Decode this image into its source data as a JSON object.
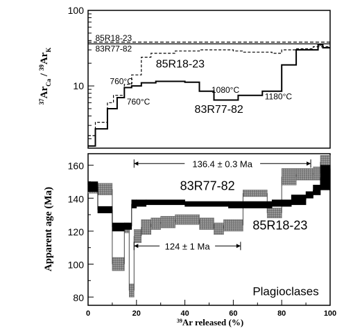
{
  "chart_data": [
    {
      "type": "line",
      "panel": "top",
      "yscale": "log",
      "xlim": [
        0,
        100
      ],
      "ylim": [
        1.5,
        100
      ],
      "yticks": [
        10,
        100
      ],
      "ylabel_parts": [
        "37",
        "Ar",
        "Ca",
        " / ",
        "39",
        "Ar",
        "K"
      ],
      "reference_lines": [
        {
          "name": "85R18-23",
          "value": 38,
          "style": "dashed"
        },
        {
          "name": "83R77-82",
          "value": 36,
          "style": "solid"
        }
      ],
      "series": [
        {
          "name": "85R18-23",
          "style": "dashed",
          "steps": [
            [
              0,
              2.2
            ],
            [
              3,
              3.3
            ],
            [
              8,
              6
            ],
            [
              10.5,
              7.5
            ],
            [
              15,
              10.5
            ],
            [
              18,
              14
            ],
            [
              22,
              24
            ],
            [
              26,
              27
            ],
            [
              33,
              27
            ],
            [
              36,
              29
            ],
            [
              46,
              30
            ],
            [
              60,
              29
            ],
            [
              64,
              28
            ],
            [
              76,
              27
            ],
            [
              80,
              30
            ],
            [
              86,
              31
            ],
            [
              93,
              33
            ],
            [
              96,
              33
            ],
            [
              100,
              33
            ]
          ]
        },
        {
          "name": "83R77-82",
          "style": "solid",
          "steps": [
            [
              0,
              1.6
            ],
            [
              3,
              2.7
            ],
            [
              8,
              5
            ],
            [
              12,
              7
            ],
            [
              15,
              9.5
            ],
            [
              18,
              10
            ],
            [
              22,
              11
            ],
            [
              28,
              11.5
            ],
            [
              40,
              11.2
            ],
            [
              46,
              8.5
            ],
            [
              52,
              6.5
            ],
            [
              62,
              7.5
            ],
            [
              72,
              8.5
            ],
            [
              80,
              19
            ],
            [
              86,
              30
            ],
            [
              95,
              35
            ],
            [
              97,
              32
            ],
            [
              100,
              32
            ]
          ]
        }
      ],
      "annotations": [
        {
          "text": "85R18-23",
          "x": 3,
          "y": 43,
          "series": "85R18-23"
        },
        {
          "text": "83R77-82",
          "x": 3,
          "y": 31,
          "series": "83R77-82"
        },
        {
          "text": "85R18-23",
          "x": 28,
          "y": 19,
          "series": "85R18-23"
        },
        {
          "text": "760°C",
          "x": 9,
          "y": 11.5,
          "series": "85R18-23"
        },
        {
          "text": "760°C",
          "x": 16,
          "y": 6.2,
          "series": "83R77-82"
        },
        {
          "text": "1080°C",
          "x": 51,
          "y": 8.8,
          "series": "83R77-82"
        },
        {
          "text": "83R77-82",
          "x": 44,
          "y": 4.8,
          "series": "83R77-82"
        },
        {
          "text": "1180°C",
          "x": 73,
          "y": 7.2,
          "series": "83R77-82"
        }
      ]
    },
    {
      "type": "area",
      "panel": "bottom",
      "xlim": [
        0,
        100
      ],
      "ylim": [
        75,
        167
      ],
      "xticks": [
        0,
        20,
        40,
        60,
        80,
        100
      ],
      "yticks": [
        80,
        100,
        120,
        140,
        160
      ],
      "xlabel_parts": [
        "39",
        "Ar released  (%)"
      ],
      "ylabel": "Apparent  age  (Ma)",
      "series": [
        {
          "name": "83R77-82",
          "style": "black",
          "steps": [
            [
              0,
              144,
              150
            ],
            [
              4,
              131,
              135
            ],
            [
              10,
              120,
              125
            ],
            [
              15,
              121,
              125
            ],
            [
              18,
              134,
              139
            ],
            [
              20,
              135,
              139
            ],
            [
              24,
              136,
              139
            ],
            [
              40,
              135,
              138
            ],
            [
              58,
              134,
              138
            ],
            [
              76,
              135,
              139
            ],
            [
              84,
              136,
              142
            ],
            [
              90,
              140,
              144
            ],
            [
              93,
              142,
              148
            ],
            [
              96,
              145,
              160
            ],
            [
              100,
              145,
              160
            ]
          ]
        },
        {
          "name": "85R18-23",
          "style": "gray",
          "steps": [
            [
              0,
              143,
              148
            ],
            [
              4,
              142,
              149
            ],
            [
              10,
              96,
              104
            ],
            [
              15,
              119,
              125
            ],
            [
              17,
              80,
              88
            ],
            [
              19,
              113,
              121
            ],
            [
              22,
              118,
              127
            ],
            [
              26,
              121,
              128
            ],
            [
              30,
              122,
              129
            ],
            [
              36,
              124,
              130
            ],
            [
              46,
              121,
              128
            ],
            [
              52,
              118,
              125
            ],
            [
              56,
              120,
              127
            ],
            [
              64,
              141,
              145
            ],
            [
              74,
              128,
              134
            ],
            [
              80,
              148,
              158
            ],
            [
              86,
              151,
              158
            ],
            [
              93,
              151,
              159
            ],
            [
              96,
              158,
              166
            ],
            [
              100,
              158,
              166
            ]
          ]
        }
      ],
      "plateaus": [
        {
          "text": "136.4 ± 0.3 Ma",
          "x_start": 19,
          "x_end": 92,
          "y": 161
        },
        {
          "text": "124 ± 1 Ma",
          "x_start": 19,
          "x_end": 63,
          "y": 111
        }
      ],
      "annotations": [
        {
          "text": "83R77-82",
          "x": 38,
          "y": 145
        },
        {
          "text": "85R18-23",
          "x": 68,
          "y": 121
        },
        {
          "text": "Plagioclases",
          "x": 68,
          "y": 81
        }
      ]
    }
  ]
}
